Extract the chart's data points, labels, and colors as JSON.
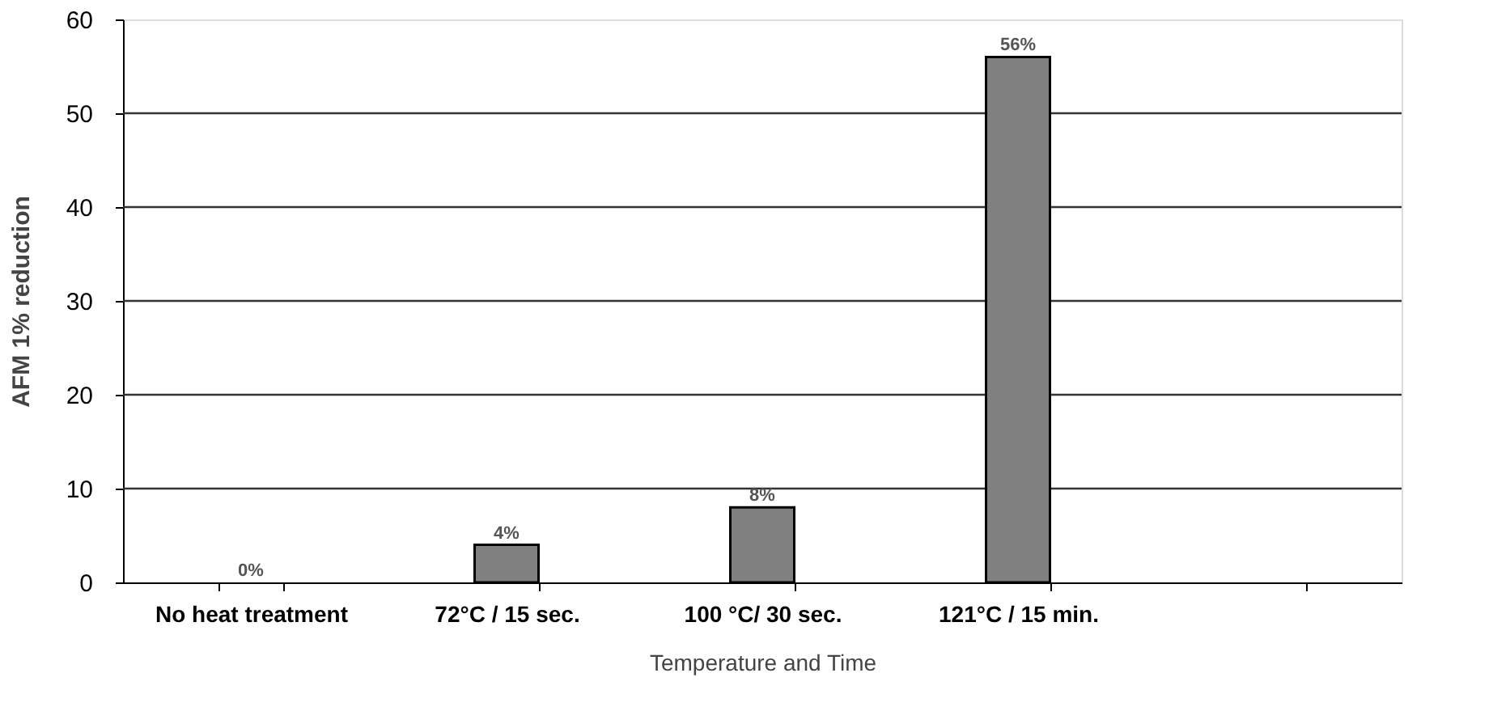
{
  "chart_data": {
    "type": "bar",
    "xlabel": "Temperature and Time",
    "ylabel": "AFM 1% reduction",
    "categories": [
      "No heat treatment",
      "72°C / 15 sec.",
      "100 °C/ 30 sec.",
      "121°C / 15 min.",
      null
    ],
    "values": [
      0,
      4,
      8,
      56,
      null
    ],
    "value_labels": [
      "0%",
      "4%",
      "8%",
      "56%",
      null
    ],
    "color": "#808080",
    "ylim": [
      0,
      60
    ],
    "yticks": [
      0,
      10,
      20,
      30,
      40,
      50,
      60
    ],
    "grid": "y"
  }
}
